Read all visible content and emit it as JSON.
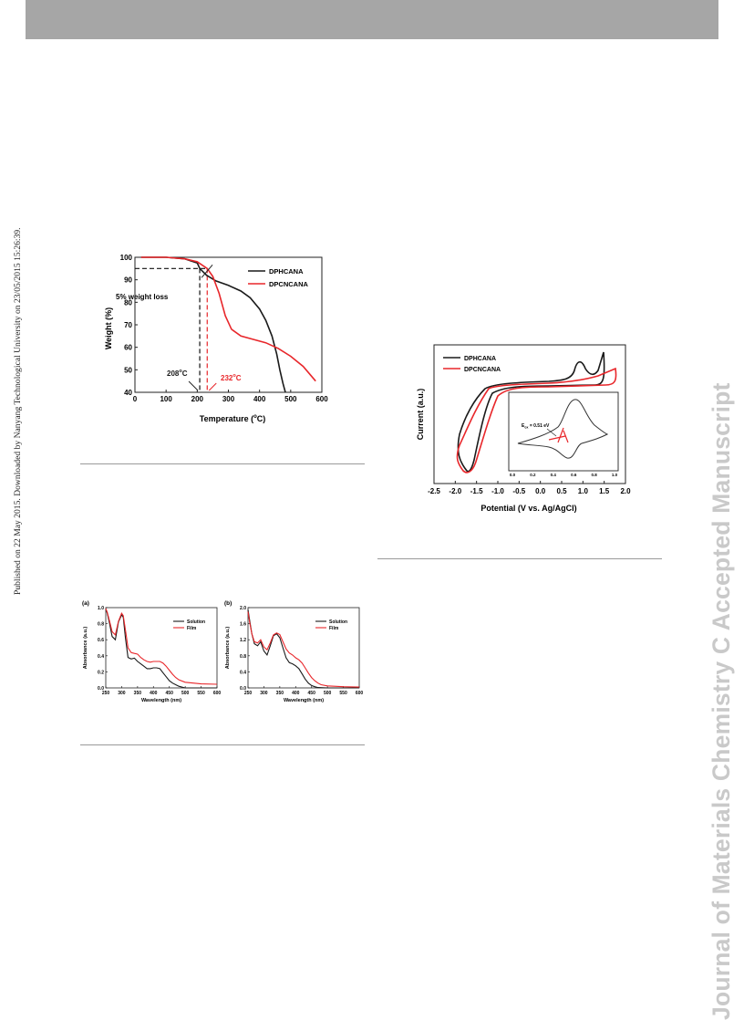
{
  "sidebar": {
    "published_note": "Published on 22 May 2015. Downloaded by Nanyang Technological University on 23/05/2015 15:26:39.",
    "journal_watermark": "Journal of Materials Chemistry C Accepted Manuscript"
  },
  "colors": {
    "black_series": "#1a1a1a",
    "red_series": "#e8262a",
    "topbar": "#a6a6a6"
  },
  "chart_data": [
    {
      "id": "tga",
      "type": "line",
      "xlabel_main": "Temperature (",
      "xlabel_sup": "o",
      "xlabel_end": "C)",
      "ylabel": "Weight (%)",
      "xlim": [
        0,
        600
      ],
      "ylim": [
        40,
        100
      ],
      "xticks": [
        "0",
        "100",
        "200",
        "300",
        "400",
        "500",
        "600"
      ],
      "yticks": [
        "40",
        "50",
        "60",
        "70",
        "80",
        "90",
        "100"
      ],
      "legend_position": "top-right",
      "annotations": {
        "weight_loss": "5% weight loss",
        "t1_value": "208",
        "t1_sup": "o",
        "t1_unit": "C",
        "t2_value": "232",
        "t2_sup": "o",
        "t2_unit": "C"
      },
      "series": [
        {
          "name": "DPHCANA",
          "color": "#1a1a1a",
          "x": [
            20,
            100,
            160,
            200,
            208,
            230,
            260,
            300,
            340,
            370,
            400,
            420,
            440,
            455,
            465,
            475,
            483
          ],
          "y": [
            100,
            100,
            99.3,
            97.5,
            95,
            92,
            89.5,
            87.5,
            85,
            82,
            77,
            72,
            65,
            57,
            50,
            44,
            40
          ]
        },
        {
          "name": "DPCNCANA",
          "color": "#e8262a",
          "x": [
            20,
            100,
            160,
            200,
            232,
            250,
            270,
            290,
            310,
            340,
            380,
            420,
            460,
            500,
            540,
            580
          ],
          "y": [
            100,
            100,
            99.3,
            98,
            95,
            91.5,
            84,
            74,
            68,
            65,
            63.5,
            62,
            59.5,
            56,
            51.5,
            45
          ]
        }
      ]
    },
    {
      "id": "cv",
      "type": "line",
      "xlabel": "Potential (V vs. Ag/AgCl)",
      "ylabel": "Current (a.u.)",
      "xlim": [
        -2.5,
        2.0
      ],
      "xticks": [
        "-2.5",
        "-2.0",
        "-1.5",
        "-1.0",
        "-0.5",
        "0.0",
        "0.5",
        "1.0",
        "1.5",
        "2.0"
      ],
      "legend_position": "top-left",
      "series": [
        {
          "name": "DPHCANA",
          "color": "#1a1a1a"
        },
        {
          "name": "DPCNCANA",
          "color": "#e8262a"
        }
      ],
      "inset": {
        "xlim": [
          0.0,
          1.0
        ],
        "xticks": [
          "0.0",
          "0.2",
          "0.4",
          "0.6",
          "0.8",
          "1.0"
        ],
        "annotation_main": "E",
        "annotation_sub": "ox",
        "annotation_end": " = 0.51 eV"
      }
    },
    {
      "id": "abs_a",
      "type": "line",
      "panel_label": "(a)",
      "xlabel": "Wavelength (nm)",
      "ylabel": "Absorbance (a.u.)",
      "xlim": [
        250,
        600
      ],
      "ylim": [
        0,
        1.0
      ],
      "xticks": [
        "250",
        "300",
        "350",
        "400",
        "450",
        "500",
        "550",
        "600"
      ],
      "yticks": [
        "0.0",
        "0.2",
        "0.4",
        "0.6",
        "0.8",
        "1.0"
      ],
      "legend_position": "top-right",
      "series": [
        {
          "name": "Solution",
          "color": "#1a1a1a",
          "x": [
            250,
            255,
            262,
            270,
            280,
            290,
            300,
            305,
            312,
            320,
            330,
            340,
            350,
            360,
            370,
            380,
            390,
            400,
            410,
            420,
            430,
            440,
            450,
            460,
            470,
            480,
            490,
            500,
            550,
            600
          ],
          "y": [
            0.98,
            0.93,
            0.8,
            0.64,
            0.6,
            0.82,
            0.91,
            0.88,
            0.62,
            0.38,
            0.36,
            0.37,
            0.33,
            0.3,
            0.27,
            0.24,
            0.24,
            0.25,
            0.25,
            0.24,
            0.19,
            0.14,
            0.09,
            0.06,
            0.04,
            0.02,
            0.01,
            0.0,
            0.0,
            0.0
          ]
        },
        {
          "name": "Film",
          "color": "#e8262a",
          "x": [
            250,
            255,
            262,
            270,
            280,
            290,
            300,
            305,
            312,
            320,
            330,
            340,
            350,
            360,
            370,
            380,
            390,
            400,
            410,
            420,
            430,
            440,
            450,
            460,
            470,
            480,
            500,
            550,
            600
          ],
          "y": [
            0.99,
            0.94,
            0.83,
            0.7,
            0.66,
            0.83,
            0.93,
            0.9,
            0.72,
            0.5,
            0.44,
            0.43,
            0.42,
            0.38,
            0.35,
            0.33,
            0.32,
            0.33,
            0.33,
            0.33,
            0.31,
            0.27,
            0.22,
            0.17,
            0.13,
            0.1,
            0.07,
            0.05,
            0.045
          ]
        }
      ]
    },
    {
      "id": "abs_b",
      "type": "line",
      "panel_label": "(b)",
      "xlabel": "Wavelength (nm)",
      "ylabel": "Absorbance (a.u.)",
      "xlim": [
        250,
        600
      ],
      "ylim": [
        0,
        2.0
      ],
      "xticks": [
        "250",
        "300",
        "350",
        "400",
        "450",
        "500",
        "550",
        "600"
      ],
      "yticks": [
        "0.0",
        "0.4",
        "0.8",
        "1.2",
        "1.6",
        "2.0"
      ],
      "legend_position": "top-right",
      "series": [
        {
          "name": "Solution",
          "color": "#1a1a1a",
          "x": [
            250,
            255,
            262,
            270,
            280,
            290,
            300,
            310,
            320,
            330,
            340,
            350,
            360,
            370,
            380,
            390,
            400,
            410,
            420,
            430,
            440,
            450,
            460,
            470,
            500,
            550,
            600
          ],
          "y": [
            1.95,
            1.7,
            1.35,
            1.1,
            1.05,
            1.15,
            0.92,
            0.82,
            1.05,
            1.3,
            1.35,
            1.25,
            1.0,
            0.75,
            0.63,
            0.6,
            0.55,
            0.48,
            0.35,
            0.22,
            0.12,
            0.06,
            0.03,
            0.01,
            0.0,
            0.0,
            0.0
          ]
        },
        {
          "name": "Film",
          "color": "#e8262a",
          "x": [
            250,
            255,
            262,
            270,
            280,
            290,
            300,
            310,
            320,
            330,
            340,
            350,
            360,
            370,
            380,
            390,
            400,
            410,
            420,
            430,
            440,
            450,
            460,
            470,
            480,
            500,
            550,
            600
          ],
          "y": [
            1.9,
            1.65,
            1.35,
            1.15,
            1.12,
            1.2,
            1.02,
            0.95,
            1.12,
            1.32,
            1.37,
            1.33,
            1.15,
            0.97,
            0.87,
            0.82,
            0.75,
            0.7,
            0.62,
            0.5,
            0.37,
            0.26,
            0.18,
            0.12,
            0.08,
            0.05,
            0.03,
            0.02
          ]
        }
      ]
    }
  ]
}
